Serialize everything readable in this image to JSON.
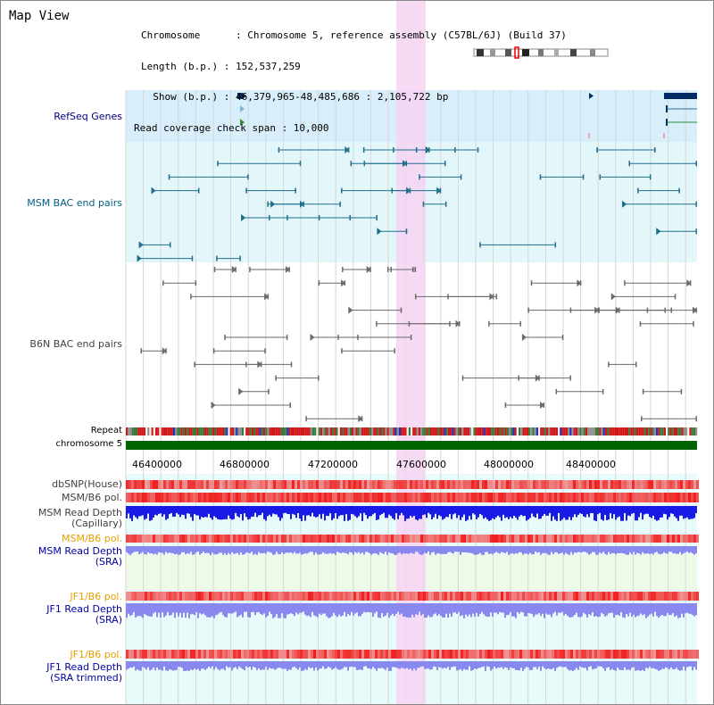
{
  "page": {
    "title": "Map View"
  },
  "header": {
    "line1": "Chromosome      : Chromosome 5, reference assembly (C57BL/6J) (Build 37)",
    "line2": "Length (b.p.) : 152,537,259",
    "line3": "  Show (b.p.) : 46,379,965-48,485,686 : 2,105,722 bp",
    "line4": "Read coverage check span : 10,000"
  },
  "tracks": {
    "refseq": "RefSeq Genes",
    "msm_bac": "MSM BAC end pairs",
    "b6n_bac": "B6N BAC end pairs",
    "repeat": "Repeat",
    "chromosome": "chromosome 5",
    "dbsnp": "dbSNP(House)",
    "msm_pol1": "MSM/B6 pol.",
    "msm_depth_cap1": "MSM Read Depth",
    "msm_depth_cap2": "(Capillary)",
    "msm_pol2": "MSM/B6 pol.",
    "msm_depth_sra1": "MSM Read Depth",
    "msm_depth_sra2": "(SRA)",
    "jf1_pol1": "JF1/B6 pol.",
    "jf1_depth_sra1": "JF1 Read Depth",
    "jf1_depth_sra2": "(SRA)",
    "jf1_pol2": "JF1/B6 pol.",
    "jf1_depth_trim1": "JF1 Read Depth",
    "jf1_depth_trim2": "(SRA trimmed)"
  },
  "axis": {
    "ticks": [
      "46400000",
      "46800000",
      "47200000",
      "47600000",
      "48000000",
      "48400000"
    ]
  },
  "colors": {
    "highlight": "#f6d4f2",
    "refseq_bg": "#d8eefa",
    "msm_bg": "#e3f7fb",
    "chromosome_bar": "#006400",
    "depth_blue": "#1a1ae6",
    "depth_light": "#8888ee"
  }
}
